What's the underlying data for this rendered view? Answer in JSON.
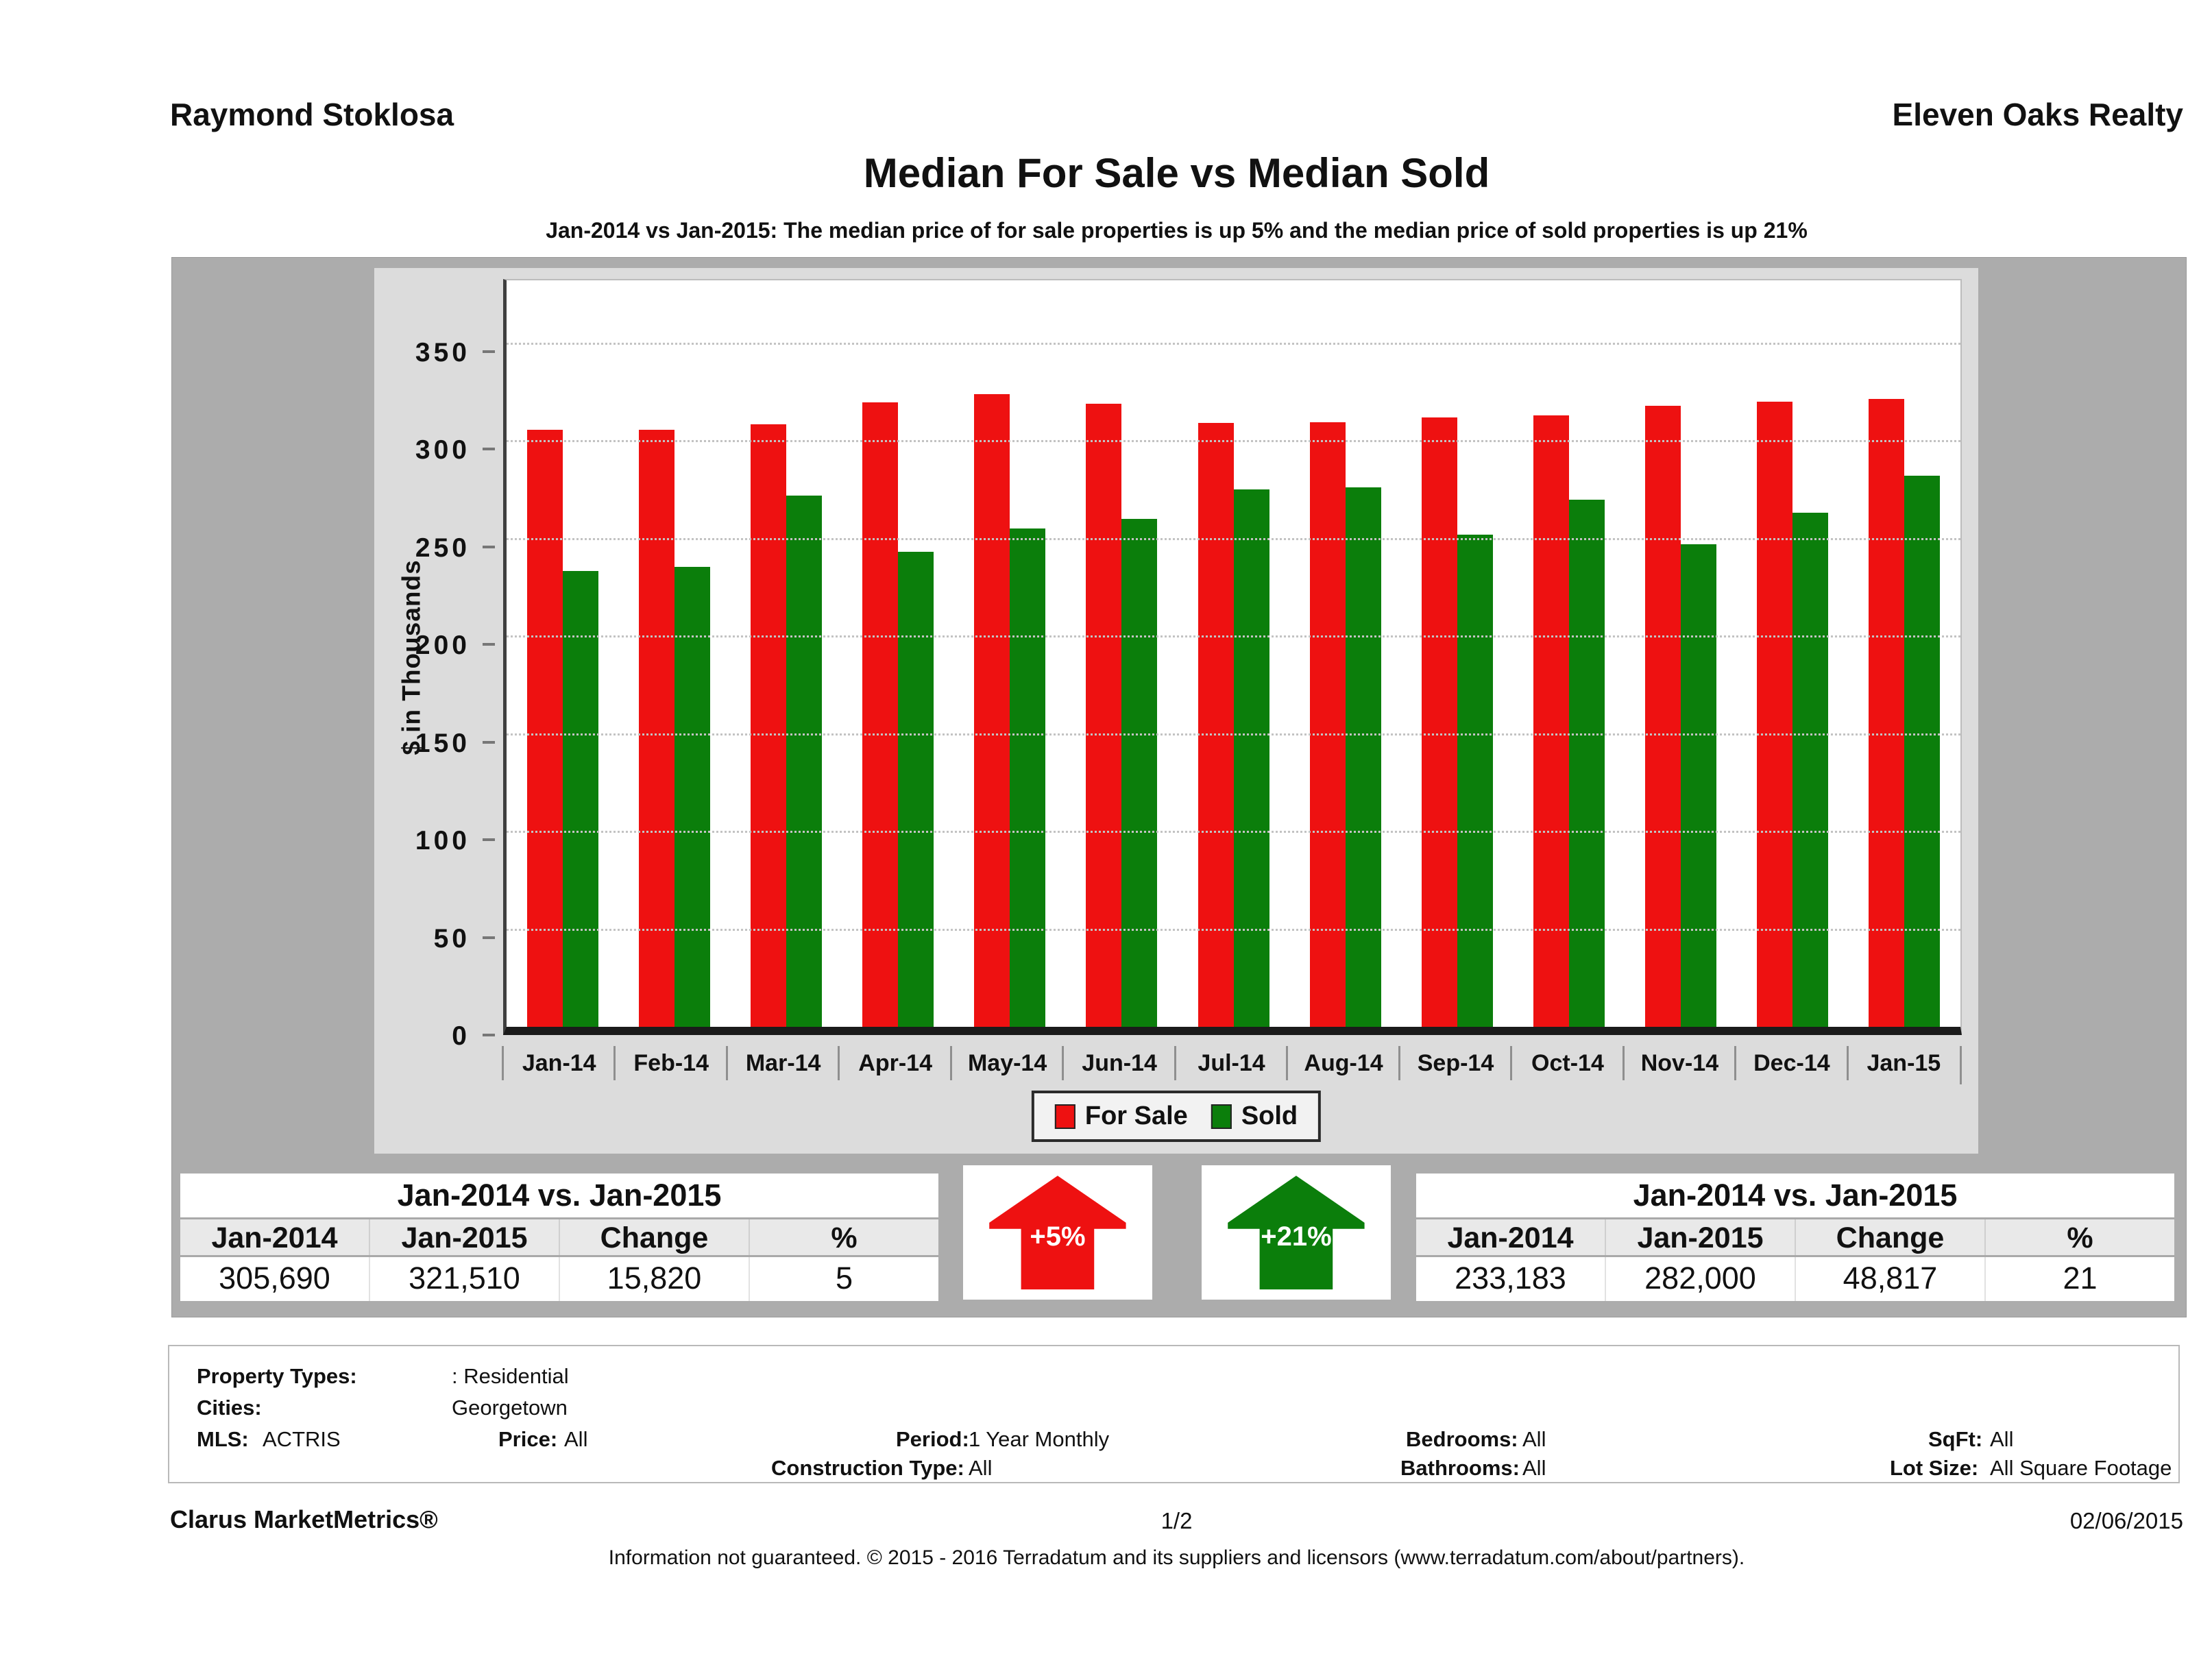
{
  "header": {
    "agent": "Raymond Stoklosa",
    "company": "Eleven Oaks Realty"
  },
  "title": "Median For Sale vs Median Sold",
  "subtitle": "Jan-2014 vs Jan-2015: The median price of for sale properties is up 5% and the median price of sold properties is up 21%",
  "chart_data": {
    "type": "bar",
    "categories": [
      "Jan-14",
      "Feb-14",
      "Mar-14",
      "Apr-14",
      "May-14",
      "Jun-14",
      "Jul-14",
      "Aug-14",
      "Sep-14",
      "Oct-14",
      "Nov-14",
      "Dec-14",
      "Jan-15"
    ],
    "series": [
      {
        "name": "For Sale",
        "color": "#ee1111",
        "values": [
          305.7,
          305.5,
          308.5,
          319.5,
          324,
          319,
          309,
          309.5,
          312,
          313,
          318,
          320,
          321.5
        ]
      },
      {
        "name": "Sold",
        "color": "#0b7e0b",
        "values": [
          233.2,
          235.5,
          272,
          243,
          255,
          260,
          275,
          276,
          252,
          270,
          247,
          263,
          282
        ]
      }
    ],
    "title": "Median For Sale vs Median Sold",
    "xlabel": "",
    "ylabel": "$ in Thousands",
    "yticks": [
      0,
      50,
      100,
      150,
      200,
      250,
      300,
      350
    ],
    "ylim": [
      0,
      387
    ],
    "grid": true,
    "legend_position": "bottom-center"
  },
  "comparison_left": {
    "title": "Jan-2014 vs. Jan-2015",
    "headers": [
      "Jan-2014",
      "Jan-2015",
      "Change",
      "%"
    ],
    "values": [
      "305,690",
      "321,510",
      "15,820",
      "5"
    ]
  },
  "comparison_right": {
    "title": "Jan-2014 vs. Jan-2015",
    "headers": [
      "Jan-2014",
      "Jan-2015",
      "Change",
      "%"
    ],
    "values": [
      "233,183",
      "282,000",
      "48,817",
      "21"
    ]
  },
  "arrows": {
    "for_sale": {
      "text": "+5%",
      "color": "#ee1111"
    },
    "sold": {
      "text": "+21%",
      "color": "#0b7e0b"
    }
  },
  "filters": {
    "property_types_label": "Property Types:",
    "property_types_value": ": Residential",
    "cities_label": "Cities:",
    "cities_value": "Georgetown",
    "mls_label": "MLS:",
    "mls_value": "ACTRIS",
    "price_label": "Price:",
    "price_value": "All",
    "period_label": "Period:",
    "period_value": "1 Year Monthly",
    "construction_label": "Construction Type:",
    "construction_value": "All",
    "bedrooms_label": "Bedrooms:",
    "bedrooms_value": "All",
    "bathrooms_label": "Bathrooms:",
    "bathrooms_value": "All",
    "sqft_label": "SqFt:",
    "sqft_value": "All",
    "lot_label": "Lot Size:",
    "lot_value": "All Square Footage"
  },
  "footer": {
    "brand": "Clarus MarketMetrics®",
    "page": "1/2",
    "date": "02/06/2015",
    "disclaimer": "Information not guaranteed. © 2015 - 2016 Terradatum and its suppliers and licensors (www.terradatum.com/about/partners)."
  }
}
